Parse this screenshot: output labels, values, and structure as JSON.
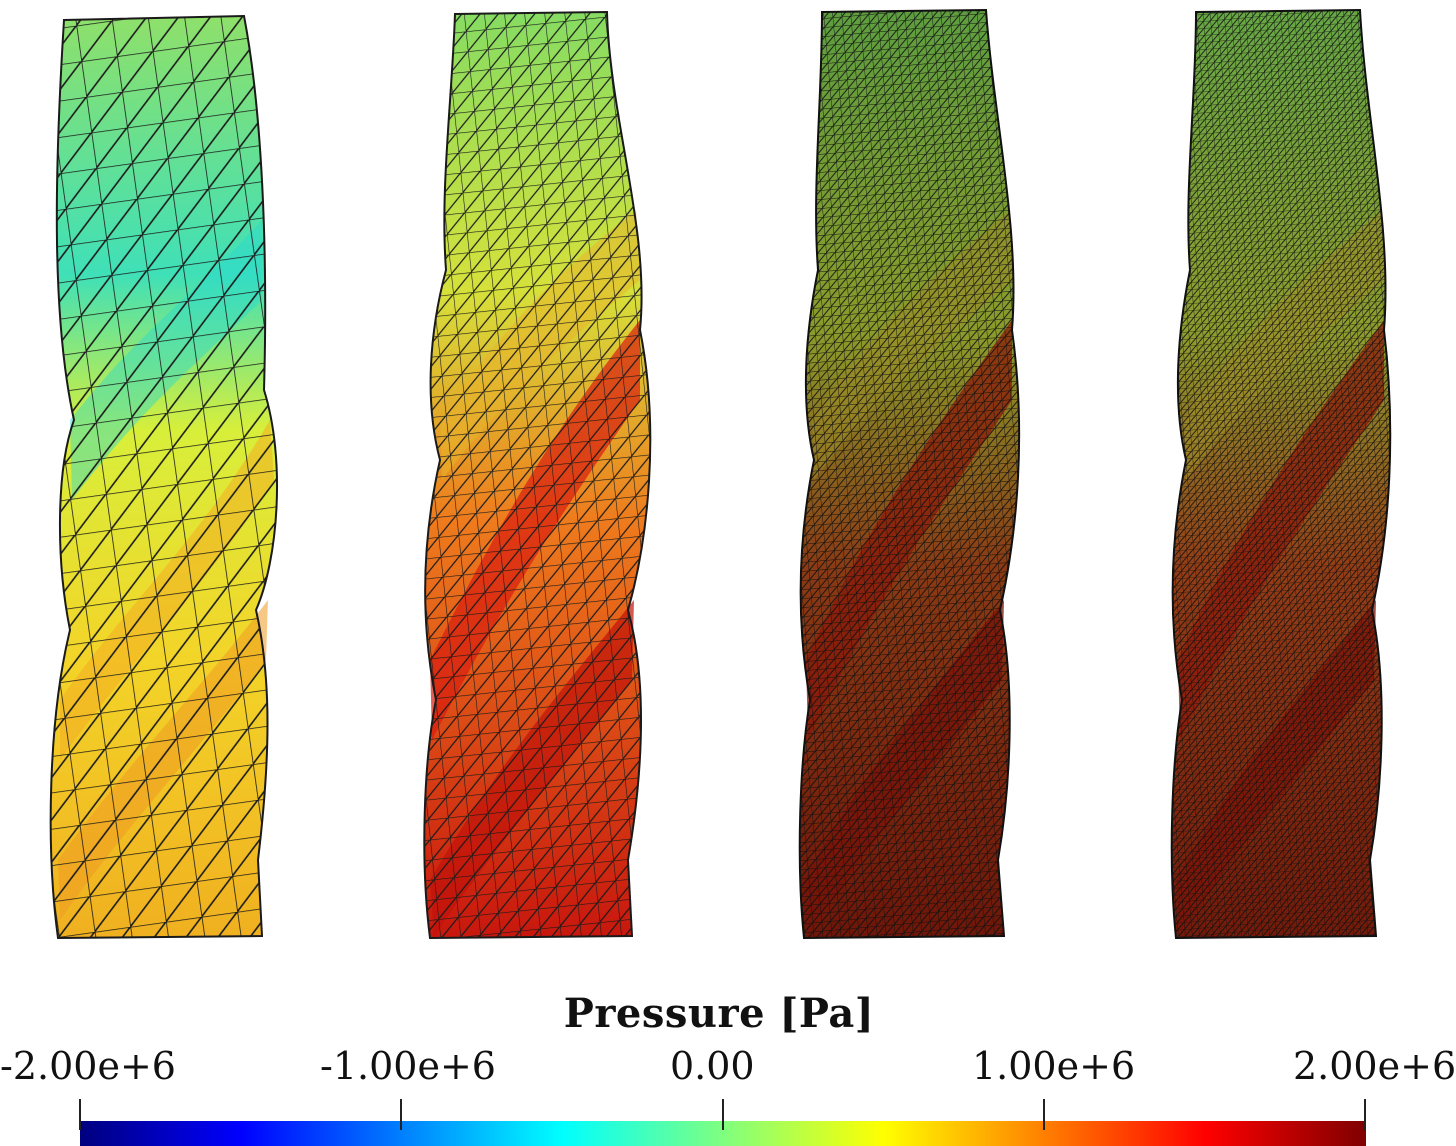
{
  "figure": {
    "panel_count": 4,
    "mesh_density": [
      "coarse",
      "medium",
      "fine",
      "finest"
    ]
  },
  "legend": {
    "title": "Pressure [Pa]",
    "ticks": [
      "-2.00e+6",
      "-1.00e+6",
      "0.00",
      "1.00e+6",
      "2.00e+6"
    ],
    "colormap": [
      "#00007f",
      "#0000ff",
      "#007fff",
      "#00ffff",
      "#7fff7f",
      "#ffff00",
      "#ff7f00",
      "#ff0000",
      "#7f0000"
    ]
  }
}
